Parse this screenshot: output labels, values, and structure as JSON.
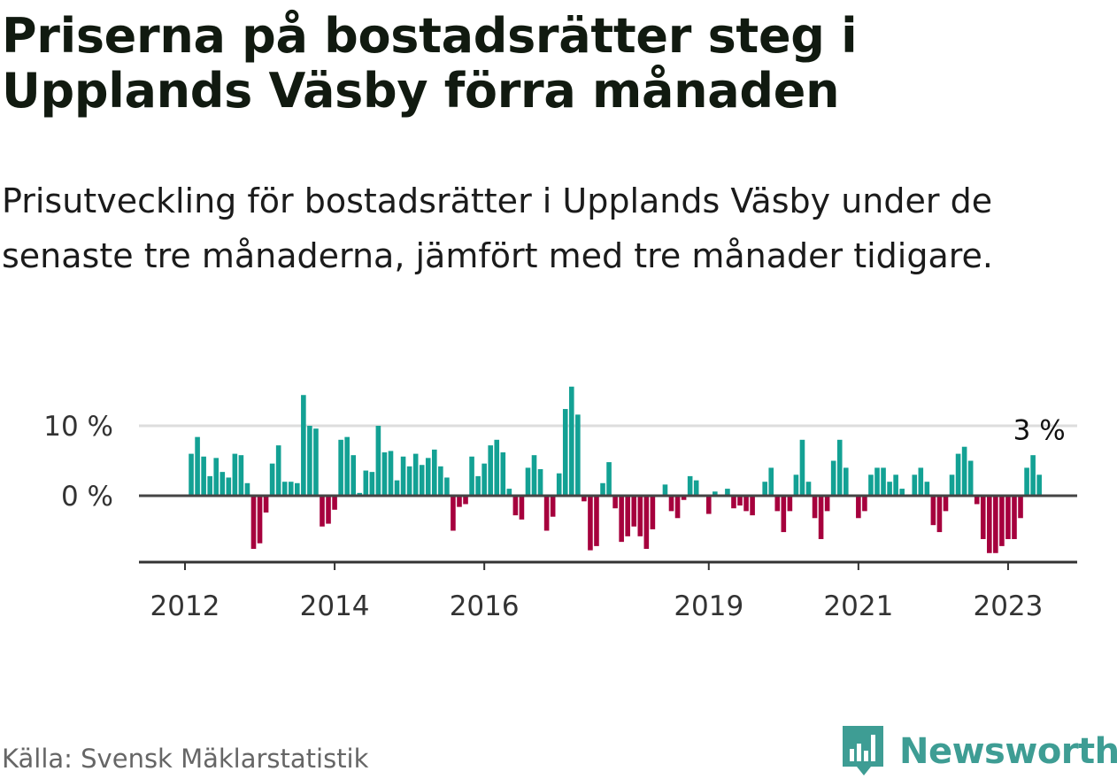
{
  "title": "Priserna på bostadsrätter steg i Upplands Väsby förra månaden",
  "subtitle": "Prisutveckling för bostadsrätter i Upplands Väsby under de senaste tre månaderna, jämfört med tre månader tidigare.",
  "source": "Källa: Svensk Mäklarstatistik",
  "brand": "Newsworthy",
  "colors": {
    "positive": "#13a194",
    "negative": "#a6003d",
    "grid": "#dddddd",
    "axis": "#333333"
  },
  "chart_data": {
    "type": "bar",
    "title": "Priserna på bostadsrätter steg i Upplands Väsby förra månaden",
    "xlabel": "",
    "ylabel": "",
    "ylim": [
      -10,
      16
    ],
    "y_ticks": [
      0,
      10
    ],
    "y_tick_labels": [
      "0 %",
      "10 %"
    ],
    "x_tick_labels": [
      "2012",
      "2014",
      "2016",
      "2019",
      "2021",
      "2023"
    ],
    "x_tick_months": [
      "2012-01",
      "2014-01",
      "2016-01",
      "2019-01",
      "2021-01",
      "2023-01"
    ],
    "start_month": "2012-01",
    "end_month": "2023-04",
    "annotation": "3 %",
    "values": [
      null,
      6,
      8.4,
      5.6,
      2.8,
      5.4,
      3.4,
      2.6,
      6,
      5.8,
      1.8,
      -7.6,
      -6.8,
      -2.4,
      4.6,
      7.2,
      2,
      2,
      1.8,
      14.4,
      10,
      9.6,
      -4.4,
      -4,
      -2,
      8,
      8.4,
      5.8,
      0.4,
      3.6,
      3.4,
      10,
      6.2,
      6.4,
      2.2,
      5.6,
      4.2,
      6,
      4.4,
      5.4,
      6.6,
      4.2,
      2.6,
      -5,
      -1.6,
      -1.2,
      5.6,
      2.8,
      4.6,
      7.2,
      8,
      6.2,
      1,
      -2.8,
      -3.4,
      4,
      5.8,
      3.8,
      -5,
      -3,
      3.2,
      12.4,
      15.6,
      11.6,
      -0.8,
      -7.8,
      -7.2,
      1.8,
      4.8,
      -1.8,
      -6.6,
      -5.8,
      -4.4,
      -5.8,
      -7.6,
      -4.8,
      0,
      1.6,
      -2.2,
      -3.2,
      -0.6,
      2.8,
      2.2,
      0,
      -2.6,
      0.6,
      0,
      1,
      -1.8,
      -1.4,
      -2.2,
      -2.8,
      0,
      2,
      4,
      -2.2,
      -5.2,
      -2.2,
      3,
      8,
      2,
      -3.2,
      -6.2,
      -2.2,
      5,
      8,
      4,
      0,
      -3.2,
      -2.2,
      3,
      4,
      4,
      2,
      3,
      1,
      0,
      3,
      4,
      2,
      -4.2,
      -5.2,
      -2.2,
      3,
      6,
      7,
      5,
      -1.2,
      -6.2,
      -8.2,
      -8.2,
      -7.2,
      -6.2,
      -6.2,
      -3.2,
      4,
      5.8,
      3
    ]
  }
}
